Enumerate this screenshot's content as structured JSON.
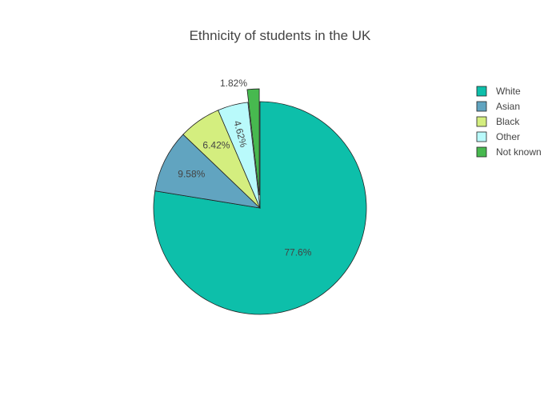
{
  "chart_data": {
    "type": "pie",
    "title": "Ethnicity of students in the UK",
    "slices": [
      {
        "label": "White",
        "value": 77.6,
        "text": "77.6%",
        "color": "#0dbfaa",
        "pulled": false,
        "label_position": "inside",
        "label_rotated": false
      },
      {
        "label": "Asian",
        "value": 9.58,
        "text": "9.58%",
        "color": "#61a4c0",
        "pulled": false,
        "label_position": "inside",
        "label_rotated": false
      },
      {
        "label": "Black",
        "value": 6.42,
        "text": "6.42%",
        "color": "#d4ee7f",
        "pulled": false,
        "label_position": "inside",
        "label_rotated": false
      },
      {
        "label": "Other",
        "value": 4.62,
        "text": "4.62%",
        "color": "#b9fafb",
        "pulled": false,
        "label_position": "inside",
        "label_rotated": true
      },
      {
        "label": "Not known",
        "value": 1.82,
        "text": "1.82%",
        "color": "#47b94f",
        "pulled": true,
        "label_position": "outside",
        "label_rotated": false
      }
    ],
    "direction": "clockwise",
    "start": "top",
    "slice_border_color": "#222222",
    "legend": {
      "placement": "right"
    }
  }
}
